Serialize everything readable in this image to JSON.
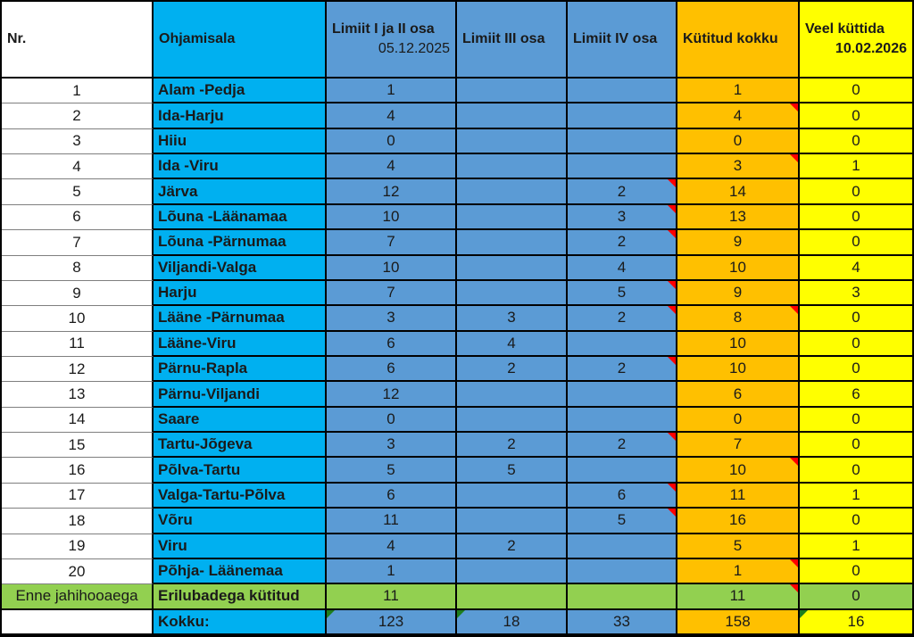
{
  "table": {
    "columns": [
      {
        "key": "nr",
        "label": "Nr.",
        "sublabel": ""
      },
      {
        "key": "area",
        "label": "Ohjamisala",
        "sublabel": ""
      },
      {
        "key": "limit12",
        "label": "Limiit I ja II osa",
        "sublabel": "05.12.2025"
      },
      {
        "key": "limit3",
        "label": "Limiit III osa",
        "sublabel": ""
      },
      {
        "key": "limit4",
        "label": "Limiit IV osa",
        "sublabel": ""
      },
      {
        "key": "hunted",
        "label": "Kütitud kokku",
        "sublabel": ""
      },
      {
        "key": "remaining",
        "label": "Veel küttida",
        "sublabel": "10.02.2026"
      }
    ],
    "rows": [
      {
        "type": "data",
        "nr": "1",
        "area": "Alam -Pedja",
        "limit12": "1",
        "limit3": "",
        "limit4": "",
        "hunted": "1",
        "remaining": "0",
        "markers": {}
      },
      {
        "type": "data",
        "nr": "2",
        "area": "Ida-Harju",
        "limit12": "4",
        "limit3": "",
        "limit4": "",
        "hunted": "4",
        "remaining": "0",
        "markers": {
          "hunted": "red"
        }
      },
      {
        "type": "data",
        "nr": "3",
        "area": "Hiiu",
        "limit12": "0",
        "limit3": "",
        "limit4": "",
        "hunted": "0",
        "remaining": "0",
        "markers": {}
      },
      {
        "type": "data",
        "nr": "4",
        "area": "Ida -Viru",
        "limit12": "4",
        "limit3": "",
        "limit4": "",
        "hunted": "3",
        "remaining": "1",
        "markers": {
          "hunted": "red"
        }
      },
      {
        "type": "data",
        "nr": "5",
        "area": "Järva",
        "limit12": "12",
        "limit3": "",
        "limit4": "2",
        "hunted": "14",
        "remaining": "0",
        "markers": {
          "limit4": "red"
        }
      },
      {
        "type": "data",
        "nr": "6",
        "area": "Lõuna -Läänamaa",
        "limit12": "10",
        "limit3": "",
        "limit4": "3",
        "hunted": "13",
        "remaining": "0",
        "markers": {
          "limit4": "red"
        }
      },
      {
        "type": "data",
        "nr": "7",
        "area": "Lõuna -Pärnumaa",
        "limit12": "7",
        "limit3": "",
        "limit4": "2",
        "hunted": "9",
        "remaining": "0",
        "markers": {
          "limit4": "red"
        }
      },
      {
        "type": "data",
        "nr": "8",
        "area": "Viljandi-Valga",
        "limit12": "10",
        "limit3": "",
        "limit4": "4",
        "hunted": "10",
        "remaining": "4",
        "markers": {}
      },
      {
        "type": "data",
        "nr": "9",
        "area": "Harju",
        "limit12": "7",
        "limit3": "",
        "limit4": "5",
        "hunted": "9",
        "remaining": "3",
        "markers": {
          "limit4": "red"
        }
      },
      {
        "type": "data",
        "nr": "10",
        "area": "Lääne -Pärnumaa",
        "limit12": "3",
        "limit3": "3",
        "limit4": "2",
        "hunted": "8",
        "remaining": "0",
        "markers": {
          "limit4": "red",
          "hunted": "red"
        }
      },
      {
        "type": "data",
        "nr": "11",
        "area": "Lääne-Viru",
        "limit12": "6",
        "limit3": "4",
        "limit4": "",
        "hunted": "10",
        "remaining": "0",
        "markers": {}
      },
      {
        "type": "data",
        "nr": "12",
        "area": "Pärnu-Rapla",
        "limit12": "6",
        "limit3": "2",
        "limit4": "2",
        "hunted": "10",
        "remaining": "0",
        "markers": {
          "limit4": "red"
        }
      },
      {
        "type": "data",
        "nr": "13",
        "area": "Pärnu-Viljandi",
        "limit12": "12",
        "limit3": "",
        "limit4": "",
        "hunted": "6",
        "remaining": "6",
        "markers": {}
      },
      {
        "type": "data",
        "nr": "14",
        "area": "Saare",
        "limit12": "0",
        "limit3": "",
        "limit4": "",
        "hunted": "0",
        "remaining": "0",
        "markers": {}
      },
      {
        "type": "data",
        "nr": "15",
        "area": "Tartu-Jõgeva",
        "limit12": "3",
        "limit3": "2",
        "limit4": "2",
        "hunted": "7",
        "remaining": "0",
        "markers": {
          "limit4": "red"
        }
      },
      {
        "type": "data",
        "nr": "16",
        "area": "Põlva-Tartu",
        "limit12": "5",
        "limit3": "5",
        "limit4": "",
        "hunted": "10",
        "remaining": "0",
        "markers": {
          "hunted": "red"
        }
      },
      {
        "type": "data",
        "nr": "17",
        "area": "Valga-Tartu-Põlva",
        "limit12": "6",
        "limit3": "",
        "limit4": "6",
        "hunted": "11",
        "remaining": "1",
        "markers": {
          "limit4": "red"
        }
      },
      {
        "type": "data",
        "nr": "18",
        "area": "Võru",
        "limit12": "11",
        "limit3": "",
        "limit4": "5",
        "hunted": "16",
        "remaining": "0",
        "markers": {
          "limit4": "red"
        }
      },
      {
        "type": "data",
        "nr": "19",
        "area": "Viru",
        "limit12": "4",
        "limit3": "2",
        "limit4": "",
        "hunted": "5",
        "remaining": "1",
        "markers": {}
      },
      {
        "type": "data",
        "nr": "20",
        "area": "Põhja- Läänemaa",
        "limit12": "1",
        "limit3": "",
        "limit4": "",
        "hunted": "1",
        "remaining": "0",
        "markers": {
          "hunted": "red"
        }
      },
      {
        "type": "special",
        "nr": "Enne jahihooaega",
        "area": "Erilubadega kütitud",
        "limit12": "11",
        "limit3": "",
        "limit4": "",
        "hunted": "11",
        "remaining": "0",
        "markers": {
          "hunted": "red"
        }
      },
      {
        "type": "total",
        "nr": "",
        "area": "Kokku:",
        "limit12": "123",
        "limit3": "18",
        "limit4": "33",
        "hunted": "158",
        "remaining": "16",
        "markers": {
          "limit12": "green",
          "limit3": "green",
          "remaining": "green"
        }
      }
    ]
  },
  "colors": {
    "area_cyan": "#00B0F0",
    "limit_blue": "#5B9BD5",
    "hunted_orange": "#FFC000",
    "remaining_yellow": "#FFFF00",
    "special_green": "#92D050",
    "comment_red": "#FF0000",
    "formula_green": "#1E7E1E",
    "border_black": "#000000"
  }
}
